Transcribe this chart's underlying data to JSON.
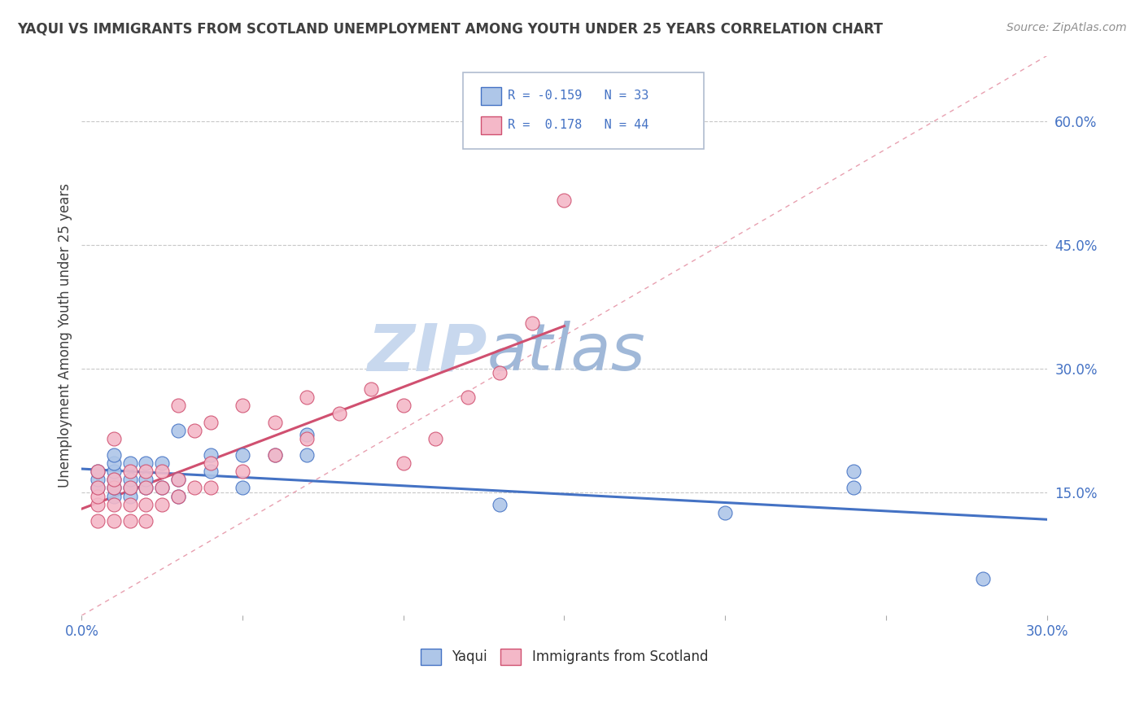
{
  "title": "YAQUI VS IMMIGRANTS FROM SCOTLAND UNEMPLOYMENT AMONG YOUTH UNDER 25 YEARS CORRELATION CHART",
  "source": "Source: ZipAtlas.com",
  "ylabel": "Unemployment Among Youth under 25 years",
  "watermark_zip": "ZIP",
  "watermark_atlas": "atlas",
  "xlim": [
    0.0,
    0.3
  ],
  "ylim": [
    0.0,
    0.68
  ],
  "xticks": [
    0.0,
    0.05,
    0.1,
    0.15,
    0.2,
    0.25,
    0.3
  ],
  "xticklabels_show": [
    "0.0%",
    "",
    "",
    "",
    "",
    "",
    "30.0%"
  ],
  "yticks_right": [
    0.15,
    0.3,
    0.45,
    0.6
  ],
  "ytick_right_labels": [
    "15.0%",
    "30.0%",
    "45.0%",
    "60.0%"
  ],
  "color_yaqui": "#aec6e8",
  "color_scotland": "#f4b8c8",
  "color_line_yaqui": "#4472c4",
  "color_line_scotland": "#d05070",
  "color_diagonal": "#e8a0b0",
  "background_color": "#ffffff",
  "grid_color": "#c8c8c8",
  "title_color": "#404040",
  "source_color": "#909090",
  "text_color": "#4472c4",
  "watermark_color_zip": "#c8d8ee",
  "watermark_color_atlas": "#a0b8d8",
  "yaqui_x": [
    0.005,
    0.005,
    0.005,
    0.01,
    0.01,
    0.01,
    0.01,
    0.01,
    0.01,
    0.015,
    0.015,
    0.015,
    0.015,
    0.02,
    0.02,
    0.02,
    0.025,
    0.025,
    0.03,
    0.03,
    0.03,
    0.04,
    0.04,
    0.05,
    0.05,
    0.06,
    0.07,
    0.07,
    0.13,
    0.2,
    0.24,
    0.24,
    0.28
  ],
  "yaqui_y": [
    0.155,
    0.165,
    0.175,
    0.145,
    0.155,
    0.165,
    0.175,
    0.185,
    0.195,
    0.145,
    0.155,
    0.165,
    0.185,
    0.155,
    0.165,
    0.185,
    0.155,
    0.185,
    0.145,
    0.165,
    0.225,
    0.175,
    0.195,
    0.155,
    0.195,
    0.195,
    0.195,
    0.22,
    0.135,
    0.125,
    0.155,
    0.175,
    0.045
  ],
  "scotland_x": [
    0.005,
    0.005,
    0.005,
    0.005,
    0.005,
    0.01,
    0.01,
    0.01,
    0.01,
    0.01,
    0.015,
    0.015,
    0.015,
    0.015,
    0.02,
    0.02,
    0.02,
    0.02,
    0.025,
    0.025,
    0.025,
    0.03,
    0.03,
    0.03,
    0.035,
    0.035,
    0.04,
    0.04,
    0.04,
    0.05,
    0.05,
    0.06,
    0.06,
    0.07,
    0.07,
    0.08,
    0.09,
    0.1,
    0.1,
    0.11,
    0.12,
    0.13,
    0.14,
    0.15
  ],
  "scotland_y": [
    0.115,
    0.135,
    0.145,
    0.155,
    0.175,
    0.115,
    0.135,
    0.155,
    0.165,
    0.215,
    0.115,
    0.135,
    0.155,
    0.175,
    0.115,
    0.135,
    0.155,
    0.175,
    0.135,
    0.155,
    0.175,
    0.145,
    0.165,
    0.255,
    0.155,
    0.225,
    0.155,
    0.185,
    0.235,
    0.175,
    0.255,
    0.195,
    0.235,
    0.215,
    0.265,
    0.245,
    0.275,
    0.185,
    0.255,
    0.215,
    0.265,
    0.295,
    0.355,
    0.505
  ]
}
